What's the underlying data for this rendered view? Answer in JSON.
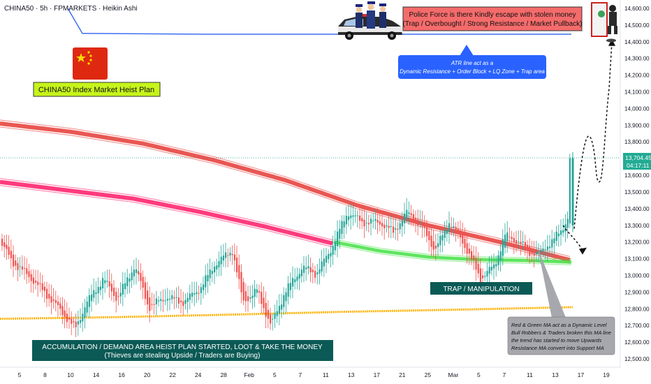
{
  "header": {
    "symbol_text": "CHINA50 · 5h · FPMARKETS · Heikin Ashi"
  },
  "chart_data": {
    "type": "candlestick",
    "ylim": [
      12450,
      14650
    ],
    "y_ticks": [
      12500,
      12600,
      12700,
      12800,
      12900,
      13000,
      13100,
      13200,
      13300,
      13400,
      13500,
      13600,
      13700,
      13800,
      13900,
      14000,
      14100,
      14200,
      14300,
      14400,
      14500,
      14600
    ],
    "y_tick_labels": [
      "12,500.00",
      "12,600.00",
      "12,700.00",
      "12,800.00",
      "12,900.00",
      "13,000.00",
      "13,100.00",
      "13,200.00",
      "13,300.00",
      "13,400.00",
      "13,500.00",
      "13,600.00",
      "13,700.00",
      "13,800.00",
      "13,900.00",
      "14,000.00",
      "14,100.00",
      "14,200.00",
      "14,300.00",
      "14,400.00",
      "14,500.00",
      "14,600.00"
    ],
    "x_labels": [
      "5",
      "8",
      "10",
      "14",
      "16",
      "20",
      "22",
      "24",
      "28",
      "Feb",
      "5",
      "7",
      "11",
      "13",
      "17",
      "21",
      "25",
      "Mar",
      "5",
      "7",
      "11",
      "13",
      "17",
      "19"
    ],
    "current_price": 13704.45,
    "current_price_label": "13,704.45",
    "countdown": "04:17:11",
    "colors": {
      "up": "#26a69a",
      "down": "#ef5350",
      "red_ma": "#e53935",
      "pink_ma": "#ff1a66",
      "green_ma": "#43e043",
      "orange_ma": "#ffb300",
      "atr": "#3d6ff0"
    },
    "series": [
      {
        "name": "",
        "kind": "red_ma_band",
        "values": [
          13910,
          13860,
          13790,
          13690,
          13570,
          13420,
          13300,
          13200,
          13090
        ]
      },
      {
        "name": "",
        "kind": "pink_ma_band",
        "values": [
          13560,
          13510,
          13460,
          13380,
          13290,
          13190
        ]
      },
      {
        "name": "",
        "kind": "green_ma_band",
        "values": [
          13200,
          13145,
          13110,
          13095,
          13090,
          13080
        ]
      },
      {
        "name": "",
        "kind": "orange_ma",
        "values": [
          12740,
          12750,
          12765,
          12782,
          12795,
          12810
        ]
      },
      {
        "name": "",
        "kind": "atr_line",
        "values": [
          14600,
          14450,
          14445,
          14445,
          14445
        ]
      }
    ]
  },
  "annotations": {
    "title_box": "CHINA50 Index Market Heist Plan",
    "police_box_line1": "Police Force is there Kindly escape with stolen money",
    "police_box_line2": "(Trap / Overbought / Strong Resistance / Market Pullback)",
    "atr_box_line1": "ATR line act as a",
    "atr_box_line2": "Dynamic Resistance + Order Block + LQ Zone + Trap area",
    "trap_box": "TRAP / MANIPULATION",
    "accum_line1": "ACCUMULATION / DEMAND AREA HEIST PLAN STARTED, LOOT & TAKE THE MONEY",
    "accum_line2": "(Thieves are stealing Upside / Traders are Buying)",
    "ma_note_line1": "Red & Green MA act as a Dynamic Level",
    "ma_note_line2": "Bull Robbers & Traders broken this MA line",
    "ma_note_line3": "the trend has started to move Upwards",
    "ma_note_line4": "Resistance MA convert into Support MA"
  }
}
